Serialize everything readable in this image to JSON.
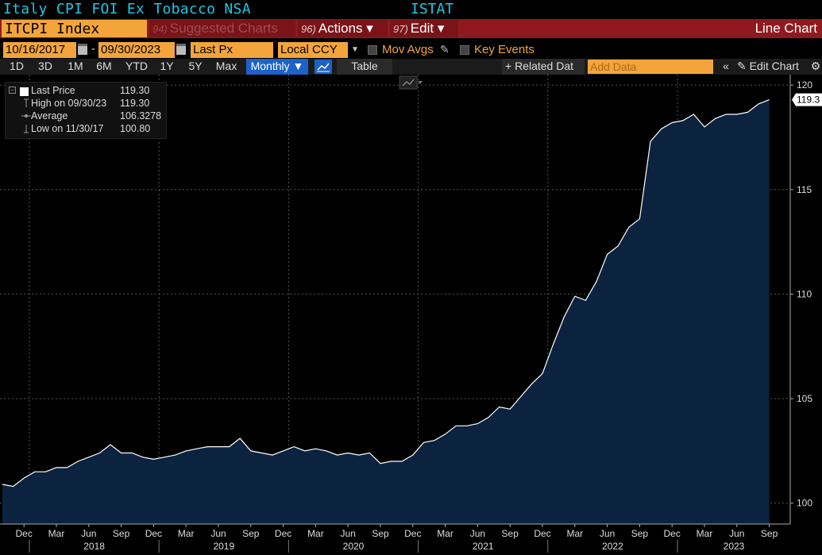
{
  "header": {
    "title": "Italy CPI FOI Ex Tobacco NSA",
    "source": "ISTAT"
  },
  "toolbar": {
    "ticker": "ITCPI Index",
    "suggested_num": "94)",
    "suggested_label": "Suggested Charts",
    "actions_num": "96)",
    "actions_label": "Actions ▾",
    "edit_num": "97)",
    "edit_label": "Edit ▾",
    "chart_type": "Line Chart"
  },
  "range": {
    "start": "10/16/2017",
    "end": "09/30/2023",
    "dash": "-",
    "field": "Last Px",
    "currency": "Local CCY",
    "mov_avgs": "Mov Avgs",
    "key_events": "Key Events"
  },
  "periods": [
    "1D",
    "3D",
    "1M",
    "6M",
    "YTD",
    "1Y",
    "5Y",
    "Max"
  ],
  "period_bar": {
    "frequency": "Monthly ▼",
    "table": "Table",
    "related": "+ Related Dat",
    "add_data_placeholder": "Add Data",
    "collapse": "«",
    "edit_chart": "✎ Edit Chart",
    "gear": "⚙"
  },
  "legend": {
    "rows": [
      {
        "label": "Last Price",
        "value": "119.30"
      },
      {
        "label": "High on 09/30/23",
        "value": "119.30"
      },
      {
        "label": "Average",
        "value": "106.3278"
      },
      {
        "label": "Low on 11/30/17",
        "value": "100.80"
      }
    ]
  },
  "colors": {
    "area_fill": "#0c2340",
    "line": "#ffffff",
    "orange": "#f3a53b",
    "cyan": "#1ec6e6",
    "red_bar": "#8e1a1f",
    "blue_btn": "#1c62c8"
  },
  "chart_data": {
    "type": "area",
    "x": [
      "2017-10",
      "2017-11",
      "2017-12",
      "2018-01",
      "2018-02",
      "2018-03",
      "2018-04",
      "2018-05",
      "2018-06",
      "2018-07",
      "2018-08",
      "2018-09",
      "2018-10",
      "2018-11",
      "2018-12",
      "2019-01",
      "2019-02",
      "2019-03",
      "2019-04",
      "2019-05",
      "2019-06",
      "2019-07",
      "2019-08",
      "2019-09",
      "2019-10",
      "2019-11",
      "2019-12",
      "2020-01",
      "2020-02",
      "2020-03",
      "2020-04",
      "2020-05",
      "2020-06",
      "2020-07",
      "2020-08",
      "2020-09",
      "2020-10",
      "2020-11",
      "2020-12",
      "2021-01",
      "2021-02",
      "2021-03",
      "2021-04",
      "2021-05",
      "2021-06",
      "2021-07",
      "2021-08",
      "2021-09",
      "2021-10",
      "2021-11",
      "2021-12",
      "2022-01",
      "2022-02",
      "2022-03",
      "2022-04",
      "2022-05",
      "2022-06",
      "2022-07",
      "2022-08",
      "2022-09",
      "2022-10",
      "2022-11",
      "2022-12",
      "2023-01",
      "2023-02",
      "2023-03",
      "2023-04",
      "2023-05",
      "2023-06",
      "2023-07",
      "2023-08",
      "2023-09"
    ],
    "series": [
      {
        "values": [
          100.9,
          100.8,
          101.2,
          101.5,
          101.5,
          101.7,
          101.7,
          102.0,
          102.2,
          102.4,
          102.8,
          102.4,
          102.4,
          102.2,
          102.1,
          102.2,
          102.3,
          102.5,
          102.6,
          102.7,
          102.7,
          102.7,
          103.1,
          102.5,
          102.4,
          102.3,
          102.5,
          102.7,
          102.5,
          102.6,
          102.5,
          102.3,
          102.4,
          102.3,
          102.4,
          101.9,
          102.0,
          102.0,
          102.3,
          102.9,
          103.0,
          103.3,
          103.7,
          103.7,
          103.8,
          104.1,
          104.6,
          104.5,
          105.1,
          105.7,
          106.2,
          107.6,
          108.9,
          109.9,
          109.7,
          110.6,
          111.9,
          112.3,
          113.2,
          113.6,
          117.3,
          117.9,
          118.2,
          118.3,
          118.6,
          118.0,
          118.4,
          118.6,
          118.6,
          118.7,
          119.1,
          119.3
        ]
      }
    ],
    "y_ticks": [
      "100",
      "105",
      "110",
      "115",
      "120"
    ],
    "ylim": [
      99.0,
      120.5
    ],
    "month_labels": [
      "Dec",
      "Mar",
      "Jun",
      "Sep",
      "Dec",
      "Mar",
      "Jun",
      "Sep",
      "Dec",
      "Mar",
      "Jun",
      "Sep",
      "Dec",
      "Mar",
      "Jun",
      "Sep",
      "Dec",
      "Mar",
      "Jun",
      "Sep",
      "Dec",
      "Mar",
      "Jun",
      "Sep"
    ],
    "month_label_dates": [
      "2017-12",
      "2018-03",
      "2018-06",
      "2018-09",
      "2018-12",
      "2019-03",
      "2019-06",
      "2019-09",
      "2019-12",
      "2020-03",
      "2020-06",
      "2020-09",
      "2020-12",
      "2021-03",
      "2021-06",
      "2021-09",
      "2021-12",
      "2022-03",
      "2022-06",
      "2022-09",
      "2022-12",
      "2023-03",
      "2023-06",
      "2023-09"
    ],
    "year_labels": [
      "2018",
      "2019",
      "2020",
      "2021",
      "2022",
      "2023"
    ],
    "last_value_label": "119.3",
    "grid": true,
    "legend_position": "top-left"
  }
}
